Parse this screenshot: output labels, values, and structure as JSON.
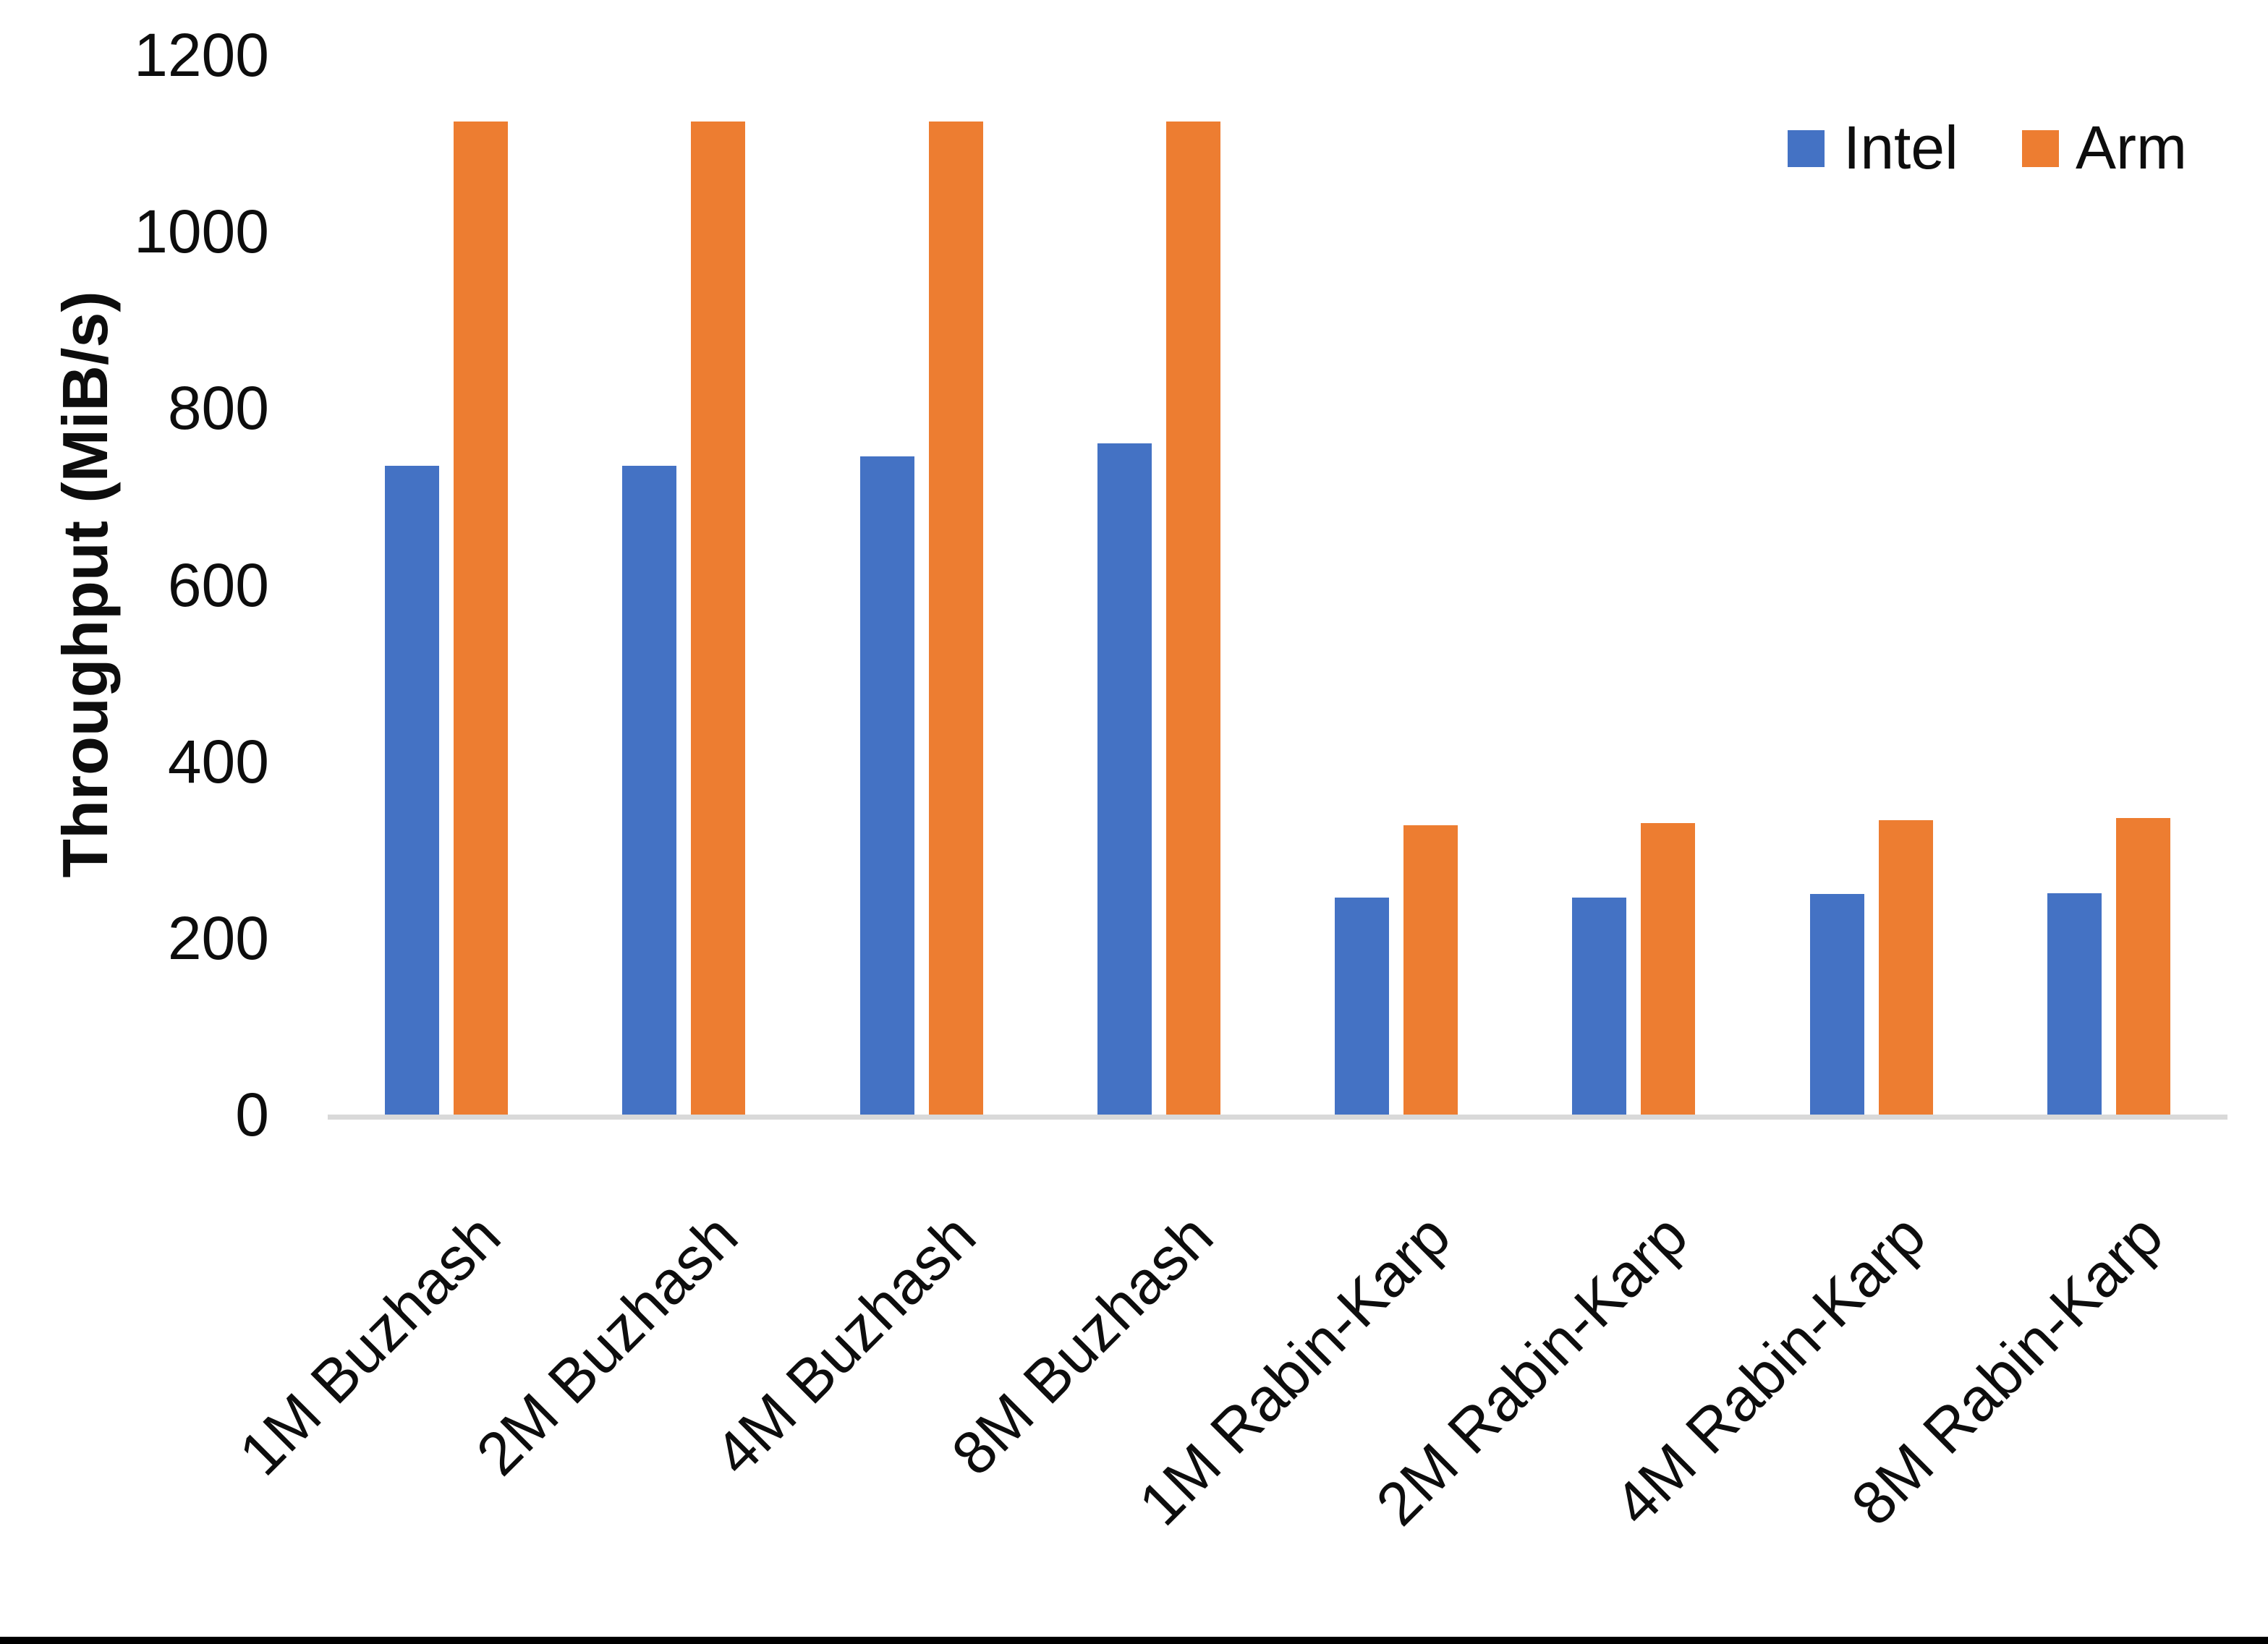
{
  "chart_data": {
    "type": "bar",
    "title": "",
    "xlabel": "",
    "ylabel": "Throughput (MiB/s)",
    "categories": [
      "1M Buzhash",
      "2M Buzhash",
      "4M Buzhash",
      "8M Buzhash",
      "1M Rabin-Karp",
      "2M Rabin-Karp",
      "4M Rabin-Karp",
      "8M Rabin-Karp"
    ],
    "series": [
      {
        "name": "Intel",
        "color": "#4472C4",
        "values": [
          735,
          735,
          745,
          760,
          246,
          246,
          250,
          251
        ]
      },
      {
        "name": "Arm",
        "color": "#ED7D31",
        "values": [
          1125,
          1125,
          1125,
          1125,
          328,
          330,
          333,
          336
        ]
      }
    ],
    "ylim": [
      0,
      1200
    ],
    "yticks": [
      0,
      200,
      400,
      600,
      800,
      1000,
      1200
    ],
    "grid": false,
    "legend_position": "top-right"
  },
  "legend": {
    "items": [
      {
        "label": "Intel",
        "color": "#4472C4"
      },
      {
        "label": "Arm",
        "color": "#ED7D31"
      }
    ]
  },
  "axis": {
    "baseline_color": "#D9D9D9",
    "text_color": "#0d0d0d"
  }
}
